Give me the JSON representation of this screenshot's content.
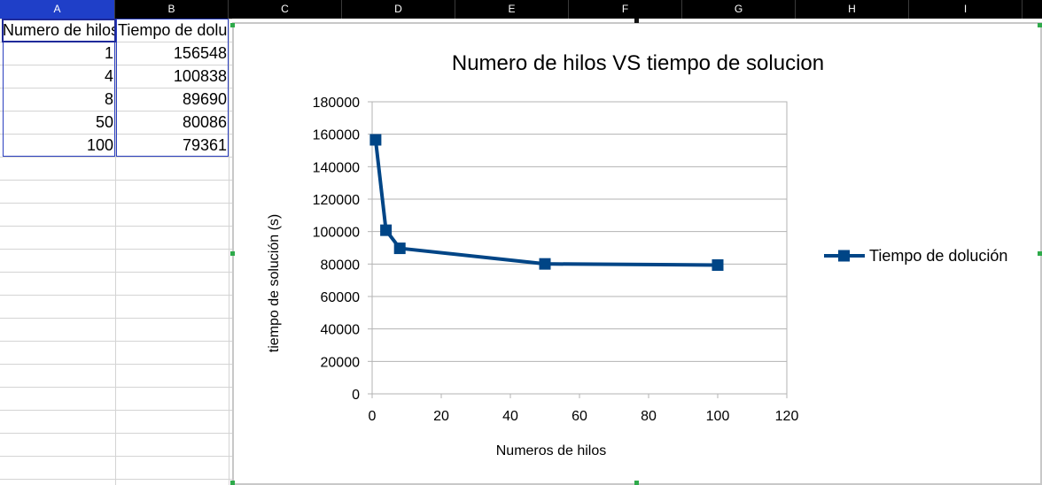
{
  "spreadsheet": {
    "columns": [
      "A",
      "B",
      "C",
      "D",
      "E",
      "F",
      "G",
      "H",
      "I"
    ],
    "selected_column": "A",
    "cells": {
      "A1": "Numero de hilos",
      "B1": "Tiempo de dolución",
      "A": [
        1,
        4,
        8,
        50,
        100
      ],
      "B": [
        156548,
        100838,
        89690,
        80086,
        79361
      ]
    }
  },
  "chart_data": {
    "type": "line",
    "title": "Numero de hilos VS tiempo de solucion",
    "xlabel": "Numeros de hilos",
    "ylabel": "tiempo de solución (s)",
    "xlim": [
      0,
      120
    ],
    "ylim": [
      0,
      180000
    ],
    "xticks": [
      0,
      20,
      40,
      60,
      80,
      100,
      120
    ],
    "yticks": [
      0,
      20000,
      40000,
      60000,
      80000,
      100000,
      120000,
      140000,
      160000,
      180000
    ],
    "grid": "horizontal",
    "legend": "right",
    "series": [
      {
        "name": "Tiempo de dolución",
        "x": [
          1,
          4,
          8,
          50,
          100
        ],
        "y": [
          156548,
          100838,
          89690,
          80086,
          79361
        ],
        "color": "#004586",
        "marker": "square"
      }
    ]
  }
}
